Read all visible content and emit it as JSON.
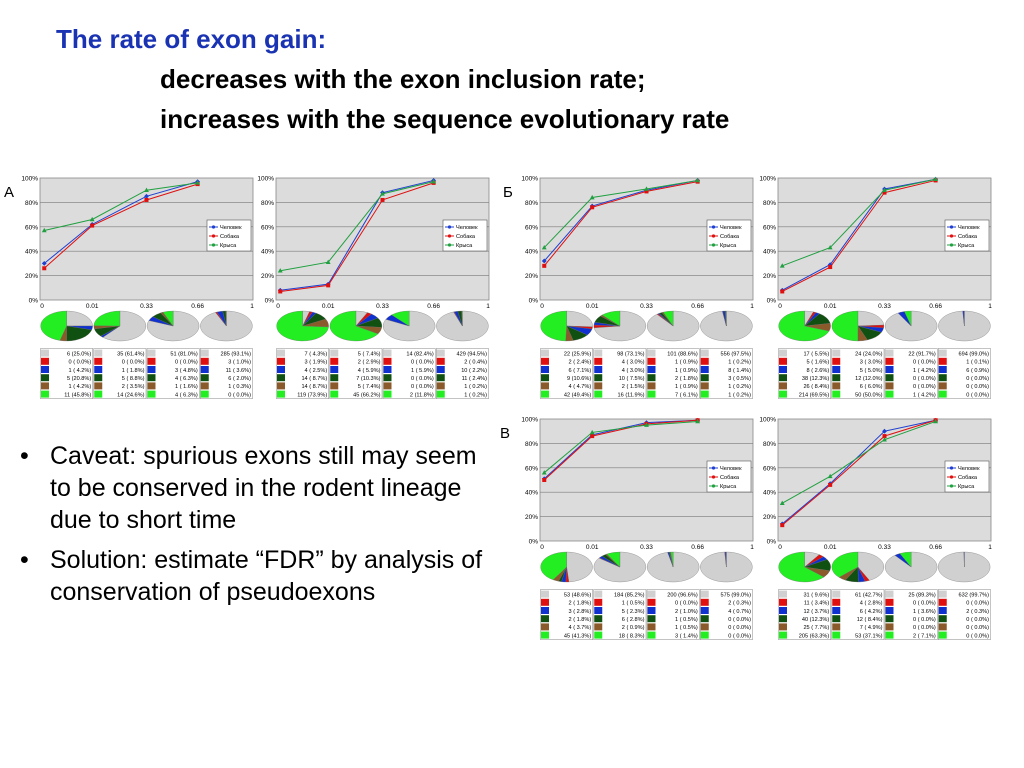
{
  "slide": {
    "title": "The rate of exon gain:",
    "subtitle_1": "decreases with the exon inclusion rate;",
    "subtitle_2": "increases with the sequence evolutionary rate",
    "bullets": [
      "Caveat: spurious exons still may seem to be conserved in the rodent lineage due to short time",
      "Solution: estimate “FDR” by analysis of conservation of pseudoexons"
    ]
  },
  "colors": {
    "plot_bg": "#dcdcdc",
    "series": [
      "#1f3fd0",
      "#e01010",
      "#20a040"
    ],
    "pie": [
      "#d0d0d0",
      "#e01010",
      "#1030d0",
      "#105010",
      "#8b5a2b",
      "#22ee22"
    ]
  },
  "chart_data": [
    {
      "type": "line",
      "panel": "А",
      "x_ticks": [
        "0",
        "0.01",
        "0.33",
        "0.66",
        "1"
      ],
      "y_ticks": [
        "0%",
        "20%",
        "40%",
        "60%",
        "80%",
        "100%"
      ],
      "ylim": [
        0,
        100
      ],
      "legend": [
        "Человек",
        "Собака",
        "Крыса"
      ],
      "legend_position": "right",
      "series": [
        {
          "name": "Человек",
          "values": [
            30,
            62,
            85,
            97
          ]
        },
        {
          "name": "Собака",
          "values": [
            26,
            61,
            82,
            95
          ]
        },
        {
          "name": "Крыса",
          "values": [
            57,
            66,
            90,
            96
          ]
        }
      ],
      "tables": [
        [
          "6 (25.0%)",
          "0 ( 0.0%)",
          "1 ( 4.2%)",
          "5 (20.8%)",
          "1 ( 4.2%)",
          "11 (45.8%)"
        ],
        [
          "35 (61.4%)",
          "0 ( 0.0%)",
          "1 ( 1.8%)",
          "5 ( 8.8%)",
          "2 ( 3.5%)",
          "14 (24.6%)"
        ],
        [
          "51 (81.0%)",
          "0 ( 0.0%)",
          "3 ( 4.8%)",
          "4 ( 6.3%)",
          "1 ( 1.6%)",
          "4 ( 6.3%)"
        ],
        [
          "285 (93.1%)",
          "3 ( 1.0%)",
          "11 ( 3.6%)",
          "6 ( 2.0%)",
          "1 ( 0.3%)",
          "0 ( 0.0%)"
        ]
      ]
    },
    {
      "type": "line",
      "panel": "",
      "x_ticks": [
        "0",
        "0.01",
        "0.33",
        "0.66",
        "1"
      ],
      "y_ticks": [
        "0%",
        "20%",
        "40%",
        "60%",
        "80%",
        "100%"
      ],
      "ylim": [
        0,
        100
      ],
      "legend": [
        "Человек",
        "Собака",
        "Крыса"
      ],
      "legend_position": "right",
      "series": [
        {
          "name": "Человек",
          "values": [
            8,
            13,
            88,
            98
          ]
        },
        {
          "name": "Собака",
          "values": [
            7,
            12,
            82,
            96
          ]
        },
        {
          "name": "Крыса",
          "values": [
            24,
            31,
            87,
            97
          ]
        }
      ],
      "tables": [
        [
          "7 ( 4.3%)",
          "3 ( 1.9%)",
          "4 ( 2.5%)",
          "14 ( 8.7%)",
          "14 ( 8.7%)",
          "119 (73.9%)"
        ],
        [
          "5 ( 7.4%)",
          "2 ( 2.9%)",
          "4 ( 5.9%)",
          "7 (10.3%)",
          "5 ( 7.4%)",
          "45 (66.2%)"
        ],
        [
          "14 (82.4%)",
          "0 ( 0.0%)",
          "1 ( 5.9%)",
          "0 ( 0.0%)",
          "0 ( 0.0%)",
          "2 (11.8%)"
        ],
        [
          "429 (94.5%)",
          "2 ( 0.4%)",
          "10 ( 2.2%)",
          "11 ( 2.4%)",
          "1 ( 0.2%)",
          "1 ( 0.2%)"
        ]
      ]
    },
    {
      "type": "line",
      "panel": "Б",
      "x_ticks": [
        "0",
        "0.01",
        "0.33",
        "0.66",
        "1"
      ],
      "y_ticks": [
        "0%",
        "20%",
        "40%",
        "60%",
        "80%",
        "100%"
      ],
      "ylim": [
        0,
        100
      ],
      "legend": [
        "Человек",
        "Собака",
        "Крыса"
      ],
      "legend_position": "right",
      "series": [
        {
          "name": "Человек",
          "values": [
            32,
            77,
            90,
            98
          ]
        },
        {
          "name": "Собака",
          "values": [
            28,
            76,
            89,
            97
          ]
        },
        {
          "name": "Крыса",
          "values": [
            43,
            84,
            91,
            98
          ]
        }
      ],
      "tables": [
        [
          "22 (25.9%)",
          "2 ( 2.4%)",
          "6 ( 7.1%)",
          "9 (10.6%)",
          "4 ( 4.7%)",
          "42 (49.4%)"
        ],
        [
          "98 (73.1%)",
          "4 ( 3.0%)",
          "4 ( 3.0%)",
          "10 ( 7.5%)",
          "2 ( 1.5%)",
          "16 (11.9%)"
        ],
        [
          "101 (88.6%)",
          "1 ( 0.9%)",
          "1 ( 0.9%)",
          "2 ( 1.8%)",
          "1 ( 0.9%)",
          "7 ( 6.1%)"
        ],
        [
          "556 (97.5%)",
          "1 ( 0.2%)",
          "8 ( 1.4%)",
          "3 ( 0.5%)",
          "1 ( 0.2%)",
          "1 ( 0.2%)"
        ]
      ]
    },
    {
      "type": "line",
      "panel": "",
      "x_ticks": [
        "0",
        "0.01",
        "0.33",
        "0.66",
        "1"
      ],
      "y_ticks": [
        "0%",
        "20%",
        "40%",
        "60%",
        "80%",
        "100%"
      ],
      "ylim": [
        0,
        100
      ],
      "legend": [
        "Человек",
        "Собака",
        "Крыса"
      ],
      "legend_position": "right",
      "series": [
        {
          "name": "Человек",
          "values": [
            8,
            29,
            91,
            99
          ]
        },
        {
          "name": "Собака",
          "values": [
            7,
            27,
            88,
            98
          ]
        },
        {
          "name": "Крыса",
          "values": [
            28,
            43,
            90,
            99
          ]
        }
      ],
      "tables": [
        [
          "17 ( 5.5%)",
          "5 ( 1.6%)",
          "8 ( 2.6%)",
          "38 (12.3%)",
          "26 ( 8.4%)",
          "214 (69.5%)"
        ],
        [
          "24 (24.0%)",
          "3 ( 3.0%)",
          "5 ( 5.0%)",
          "12 (12.0%)",
          "6 ( 6.0%)",
          "50 (50.0%)"
        ],
        [
          "22 (91.7%)",
          "0 ( 0.0%)",
          "1 ( 4.2%)",
          "0 ( 0.0%)",
          "0 ( 0.0%)",
          "1 ( 4.2%)"
        ],
        [
          "694 (99.0%)",
          "1 ( 0.1%)",
          "6 ( 0.9%)",
          "0 ( 0.0%)",
          "0 ( 0.0%)",
          "0 ( 0.0%)"
        ]
      ]
    },
    {
      "type": "line",
      "panel": "В",
      "x_ticks": [
        "0",
        "0.01",
        "0.33",
        "0.66",
        "1"
      ],
      "y_ticks": [
        "0%",
        "20%",
        "40%",
        "60%",
        "80%",
        "100%"
      ],
      "ylim": [
        0,
        100
      ],
      "legend": [
        "Человек",
        "Собака",
        "Крыса"
      ],
      "legend_position": "right",
      "series": [
        {
          "name": "Человек",
          "values": [
            51,
            87,
            97,
            99
          ]
        },
        {
          "name": "Собака",
          "values": [
            50,
            86,
            96,
            99
          ]
        },
        {
          "name": "Крыса",
          "values": [
            56,
            89,
            95,
            98
          ]
        }
      ],
      "tables": [
        [
          "53 (48.6%)",
          "2 ( 1.8%)",
          "3 ( 2.8%)",
          "2 ( 1.8%)",
          "4 ( 3.7%)",
          "45 (41.3%)"
        ],
        [
          "184 (85.2%)",
          "1 ( 0.5%)",
          "5 ( 2.3%)",
          "6 ( 2.8%)",
          "2 ( 0.9%)",
          "18 ( 8.3%)"
        ],
        [
          "200 (96.6%)",
          "0 ( 0.0%)",
          "2 ( 1.0%)",
          "1 ( 0.5%)",
          "1 ( 0.5%)",
          "3 ( 1.4%)"
        ],
        [
          "575 (99.0%)",
          "2 ( 0.3%)",
          "4 ( 0.7%)",
          "0 ( 0.0%)",
          "0 ( 0.0%)",
          "0 ( 0.0%)"
        ]
      ]
    },
    {
      "type": "line",
      "panel": "",
      "x_ticks": [
        "0",
        "0.01",
        "0.33",
        "0.66",
        "1"
      ],
      "y_ticks": [
        "0%",
        "20%",
        "40%",
        "60%",
        "80%",
        "100%"
      ],
      "ylim": [
        0,
        100
      ],
      "legend": [
        "Человек",
        "Собака",
        "Крыса"
      ],
      "legend_position": "right",
      "series": [
        {
          "name": "Человек",
          "values": [
            14,
            47,
            90,
            99
          ]
        },
        {
          "name": "Собака",
          "values": [
            13,
            46,
            86,
            99
          ]
        },
        {
          "name": "Крыса",
          "values": [
            31,
            53,
            83,
            98
          ]
        }
      ],
      "tables": [
        [
          "31 ( 9.6%)",
          "11 ( 3.4%)",
          "12 ( 3.7%)",
          "40 (12.3%)",
          "25 ( 7.7%)",
          "205 (63.3%)"
        ],
        [
          "61 (42.7%)",
          "4 ( 2.8%)",
          "6 ( 4.2%)",
          "12 ( 8.4%)",
          "7 ( 4.9%)",
          "53 (37.1%)"
        ],
        [
          "25 (89.3%)",
          "0 ( 0.0%)",
          "1 ( 3.6%)",
          "0 ( 0.0%)",
          "0 ( 0.0%)",
          "2 ( 7.1%)"
        ],
        [
          "632 (99.7%)",
          "0 ( 0.0%)",
          "2 ( 0.3%)",
          "0 ( 0.0%)",
          "0 ( 0.0%)",
          "0 ( 0.0%)"
        ]
      ]
    }
  ]
}
